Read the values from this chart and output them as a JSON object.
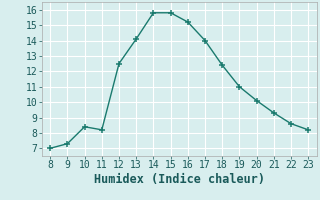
{
  "x": [
    8,
    9,
    10,
    11,
    12,
    13,
    14,
    15,
    16,
    17,
    18,
    19,
    20,
    21,
    22,
    23
  ],
  "y": [
    7.0,
    7.3,
    8.4,
    8.2,
    12.5,
    14.1,
    15.8,
    15.8,
    15.2,
    14.0,
    12.4,
    11.0,
    10.1,
    9.3,
    8.6,
    8.2
  ],
  "xlabel": "Humidex (Indice chaleur)",
  "xlim": [
    7.5,
    23.5
  ],
  "ylim": [
    6.5,
    16.5
  ],
  "xticks": [
    8,
    9,
    10,
    11,
    12,
    13,
    14,
    15,
    16,
    17,
    18,
    19,
    20,
    21,
    22,
    23
  ],
  "yticks": [
    7,
    8,
    9,
    10,
    11,
    12,
    13,
    14,
    15,
    16
  ],
  "line_color": "#1a7a6e",
  "marker": "+",
  "bg_color": "#d8eeee",
  "grid_color": "#ffffff",
  "tick_label_fontsize": 7,
  "xlabel_fontsize": 8.5
}
